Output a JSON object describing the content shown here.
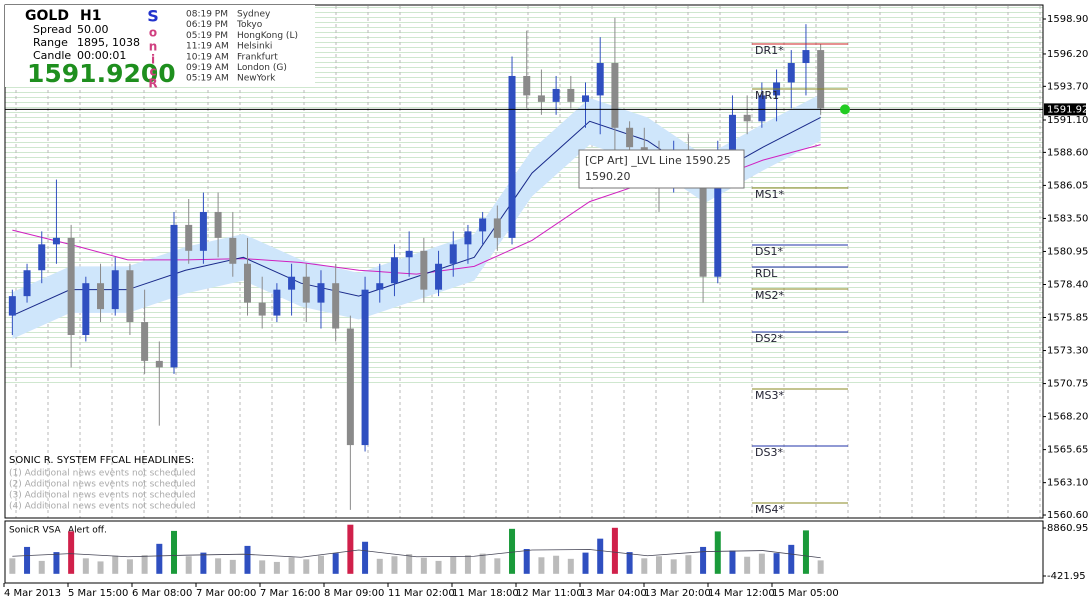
{
  "chart_data": {
    "type": "candlestick",
    "info": {
      "symbol": "GOLD",
      "timeframe": "H1",
      "spread_label": "Spread",
      "spread": "50.00",
      "range_label": "Range",
      "range": "1895, 1038",
      "candle_label": "Candle",
      "candle": "00:00:01",
      "price": "1591.9200",
      "brand": [
        "S",
        "o",
        "n",
        "i",
        "c",
        "R"
      ]
    },
    "sessions": [
      {
        "time": "08:19 PM",
        "city": "Sydney"
      },
      {
        "time": "06:19 PM",
        "city": "Tokyo"
      },
      {
        "time": "05:19 PM",
        "city": "HongKong  (L)"
      },
      {
        "time": "11:19 AM",
        "city": "Helsinki"
      },
      {
        "time": "10:19 AM",
        "city": "Frankfurt"
      },
      {
        "time": "09:19 AM",
        "city": "London  (G)"
      },
      {
        "time": "05:19 AM",
        "city": "NewYork"
      }
    ],
    "tooltip": [
      "[CP Art]  _LVL Line 1590.25",
      "1590.20"
    ],
    "headlines": {
      "title": "SONIC R. SYSTEM  FFCAL HEADLINES:",
      "items": [
        "(1) Additional news events not scheduled",
        "(2) Additional news events not scheduled",
        "(3) Additional news events not scheduled",
        "(4) Additional news events not scheduled"
      ]
    },
    "xticks": [
      "4 Mar 2013",
      "5 Mar 15:00",
      "6 Mar 08:00",
      "7 Mar 00:00",
      "7 Mar 16:00",
      "8 Mar 09:00",
      "11 Mar 02:00",
      "11 Mar 18:00",
      "12 Mar 11:00",
      "13 Mar 04:00",
      "13 Mar 20:00",
      "14 Mar 12:00",
      "15 Mar 05:00"
    ],
    "ylim": [
      1560.37,
      1599.98
    ],
    "yticks": [
      {
        "value": 1598.9,
        "label": "1598.90"
      },
      {
        "value": 1596.2,
        "label": "1596.20"
      },
      {
        "value": 1593.7,
        "label": "1593.70"
      },
      {
        "value": 1591.1,
        "label": "1591.10"
      },
      {
        "value": 1588.6,
        "label": "1588.60"
      },
      {
        "value": 1586.05,
        "label": "1586.05"
      },
      {
        "value": 1583.5,
        "label": "1583.50"
      },
      {
        "value": 1580.95,
        "label": "1580.95"
      },
      {
        "value": 1578.4,
        "label": "1578.40"
      },
      {
        "value": 1575.85,
        "label": "1575.85"
      },
      {
        "value": 1573.3,
        "label": "1573.30"
      },
      {
        "value": 1570.75,
        "label": "1570.75"
      },
      {
        "value": 1568.2,
        "label": "1568.20"
      },
      {
        "value": 1565.65,
        "label": "1565.65"
      },
      {
        "value": 1563.1,
        "label": "1563.10"
      },
      {
        "value": 1560.6,
        "label": "1560.60"
      }
    ],
    "last_price": 1591.92,
    "up_color": "#2f4fc0",
    "down_color": "#8a8a8a",
    "open": [
      1576,
      1577.5,
      1579.5,
      1581.5,
      1582,
      1574.5,
      1578.5,
      1576.5,
      1579.5,
      1575.5,
      1572.5,
      1572,
      1583,
      1581,
      1584,
      1582,
      1580,
      1577,
      1576,
      1578,
      1579,
      1577,
      1578.5,
      1575,
      1566,
      1578,
      1578.5,
      1580.5,
      1581,
      1578,
      1580,
      1581.5,
      1582.5,
      1583.5,
      1582,
      1594.5,
      1593,
      1592.5,
      1593.5,
      1592.5,
      1593,
      1595.5,
      1590.5,
      1589,
      1588.5,
      1586.5,
      1588.5,
      1587,
      1579,
      1588,
      1591.5,
      1591,
      1593,
      1594,
      1595.5,
      1596.5
    ],
    "high": [
      1578,
      1580,
      1582.5,
      1586.5,
      1583,
      1579,
      1580,
      1580.5,
      1580,
      1578,
      1574,
      1584,
      1585,
      1585.5,
      1585.5,
      1584,
      1582,
      1579,
      1578.5,
      1580,
      1580,
      1579.5,
      1580,
      1576,
      1579,
      1580,
      1581.5,
      1582.5,
      1582,
      1581,
      1582.5,
      1583,
      1584,
      1584.5,
      1596,
      1598,
      1595,
      1594.5,
      1594.5,
      1594,
      1597.5,
      1599,
      1591,
      1590.5,
      1589.5,
      1589.5,
      1590,
      1588,
      1589.5,
      1593,
      1593,
      1594,
      1595,
      1596.5,
      1598.5,
      1597
    ],
    "low": [
      1574.5,
      1577,
      1578.5,
      1580,
      1572,
      1574,
      1575.5,
      1576,
      1574.5,
      1571.5,
      1567.5,
      1571.5,
      1580,
      1580,
      1580.5,
      1579,
      1576,
      1575,
      1575.5,
      1576,
      1575.5,
      1575,
      1574,
      1561,
      1565.5,
      1577,
      1577.5,
      1579,
      1577,
      1577.5,
      1579,
      1580,
      1581.5,
      1581,
      1581.5,
      1592,
      1591.5,
      1591.5,
      1592,
      1590.5,
      1590,
      1588.5,
      1586,
      1587,
      1584,
      1585.5,
      1586,
      1577,
      1578.5,
      1587.5,
      1590,
      1590.5,
      1591,
      1592,
      1593,
      1591.5
    ],
    "close": [
      1577.5,
      1579.5,
      1581.5,
      1582,
      1574.5,
      1578.5,
      1576.5,
      1579.5,
      1575.5,
      1572.5,
      1572,
      1583,
      1581,
      1584,
      1582,
      1580,
      1577,
      1576,
      1578,
      1579,
      1577,
      1578.5,
      1575,
      1566,
      1578,
      1578.5,
      1580.5,
      1581,
      1578,
      1580,
      1581.5,
      1582.5,
      1583.5,
      1582,
      1594.5,
      1593,
      1592.5,
      1593.5,
      1592.5,
      1593,
      1595.5,
      1590.5,
      1589,
      1588.5,
      1586.5,
      1588.5,
      1587,
      1579,
      1588,
      1591.5,
      1591,
      1593,
      1594,
      1595.5,
      1596.5,
      1592
    ],
    "averages": [
      {
        "color": "#d020c0",
        "values": [
          1582.6,
          1581.5,
          1580.3,
          1580.3,
          1580.4,
          1580.1,
          1579.5,
          1579.2,
          1579.8,
          1581.8,
          1584.8,
          1586.3,
          1586.3,
          1588.0,
          1589.2
        ]
      },
      {
        "color": "#1a2a8a",
        "values": [
          1576,
          1578,
          1578,
          1579.5,
          1580.5,
          1578.5,
          1577.5,
          1579,
          1580.5,
          1587,
          1591,
          1589.5,
          1586.5,
          1589,
          1591.3
        ]
      }
    ],
    "band": {
      "color": "#cfe6fb",
      "high": [
        1577.8,
        1579.8,
        1579.8,
        1581.3,
        1582.3,
        1580.3,
        1579.3,
        1580.8,
        1582.3,
        1588.8,
        1592.8,
        1591.3,
        1588.3,
        1590.8,
        1593.1
      ],
      "low": [
        1574.2,
        1576.2,
        1576.2,
        1577.7,
        1578.7,
        1576.7,
        1575.7,
        1577.2,
        1578.7,
        1585.2,
        1589.2,
        1587.7,
        1584.7,
        1587.2,
        1589.5
      ]
    },
    "levels": [
      {
        "label": "DR1*",
        "value": 1596.97,
        "color": "#cc2222"
      },
      {
        "label": "MR1",
        "value": 1593.49,
        "color": "#8a8a20"
      },
      {
        "label": "MS1*",
        "value": 1585.85,
        "color": "#8a8a20"
      },
      {
        "label": "DS1*",
        "value": 1581.45,
        "color": "#2233aa"
      },
      {
        "label": "RDL",
        "value": 1579.75,
        "color": "#2233aa"
      },
      {
        "label": "MS2*",
        "value": 1578.05,
        "color": "#8a8a20"
      },
      {
        "label": "DS2*",
        "value": 1574.73,
        "color": "#2233aa"
      },
      {
        "label": "MS3*",
        "value": 1570.33,
        "color": "#8a8a20"
      },
      {
        "label": "DS3*",
        "value": 1565.93,
        "color": "#2233aa"
      },
      {
        "label": "MS4*",
        "value": 1561.53,
        "color": "#8a8a20"
      }
    ],
    "vsa": {
      "title": "SonicR VSA",
      "alert": "Alert off.",
      "ylim": [
        -1776,
        10215
      ],
      "yticks": [
        8860.95,
        -421.95
      ],
      "values": [
        3000,
        5200,
        2500,
        4200,
        8200,
        3000,
        2400,
        3500,
        2800,
        3600,
        5800,
        8300,
        3400,
        4100,
        3000,
        2700,
        5400,
        2600,
        2300,
        3200,
        2800,
        3500,
        4000,
        9500,
        6200,
        2900,
        3400,
        3800,
        3100,
        2500,
        3300,
        3600,
        3900,
        3000,
        8700,
        4800,
        3200,
        3500,
        2900,
        4100,
        6800,
        8900,
        4200,
        3000,
        3400,
        2800,
        3600,
        5200,
        8200,
        4500,
        3300,
        3900,
        4000,
        5600,
        8400,
        2600
      ],
      "colors": [
        "#bbbbbb",
        "#2f4fc0",
        "#bbbbbb",
        "#2f4fc0",
        "#d0204a",
        "#bbbbbb",
        "#bbbbbb",
        "#bbbbbb",
        "#bbbbbb",
        "#bbbbbb",
        "#2f4fc0",
        "#1a9a3a",
        "#bbbbbb",
        "#2f4fc0",
        "#bbbbbb",
        "#bbbbbb",
        "#2f4fc0",
        "#bbbbbb",
        "#bbbbbb",
        "#bbbbbb",
        "#bbbbbb",
        "#bbbbbb",
        "#2f4fc0",
        "#d0204a",
        "#2f4fc0",
        "#bbbbbb",
        "#bbbbbb",
        "#bbbbbb",
        "#bbbbbb",
        "#bbbbbb",
        "#bbbbbb",
        "#bbbbbb",
        "#bbbbbb",
        "#bbbbbb",
        "#1a9a3a",
        "#2f4fc0",
        "#bbbbbb",
        "#bbbbbb",
        "#bbbbbb",
        "#2f4fc0",
        "#2f4fc0",
        "#d0204a",
        "#2f4fc0",
        "#bbbbbb",
        "#bbbbbb",
        "#bbbbbb",
        "#bbbbbb",
        "#2f4fc0",
        "#1a9a3a",
        "#2f4fc0",
        "#bbbbbb",
        "#bbbbbb",
        "#2f4fc0",
        "#2f4fc0",
        "#1a9a3a",
        "#bbbbbb"
      ],
      "average": [
        3400,
        3900,
        3300,
        3600,
        3800,
        3200,
        4600,
        3300,
        3400,
        4600,
        4700,
        3500,
        4300,
        4500,
        3100
      ]
    }
  }
}
